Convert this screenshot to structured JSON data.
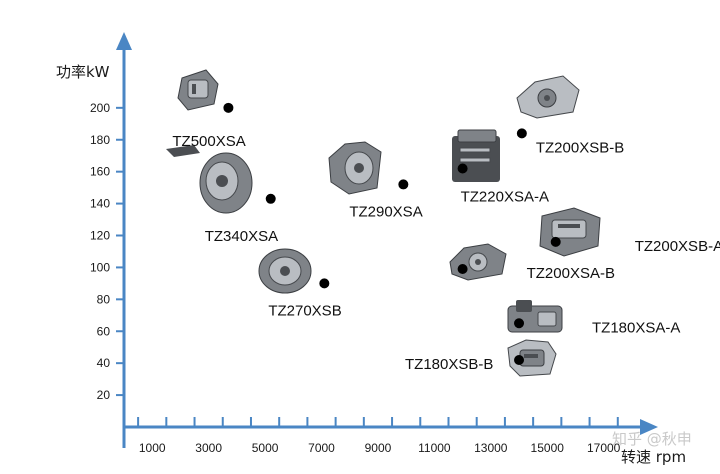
{
  "chart_data": {
    "type": "scatter",
    "title": "",
    "ylabel": "功率kW",
    "xlabel": "转速 rpm",
    "x_ticks": [
      1000,
      3000,
      5000,
      7000,
      9000,
      11000,
      13000,
      15000,
      17000
    ],
    "y_ticks": [
      20,
      40,
      60,
      80,
      100,
      120,
      140,
      160,
      180,
      200
    ],
    "xlim": [
      0,
      18500
    ],
    "ylim": [
      0,
      240
    ],
    "grid": false,
    "points": [
      {
        "label": "TZ500XSA",
        "x": 3700,
        "y": 200
      },
      {
        "label": "TZ340XSA",
        "x": 5200,
        "y": 143
      },
      {
        "label": "TZ290XSA",
        "x": 9900,
        "y": 152
      },
      {
        "label": "TZ270XSB",
        "x": 7100,
        "y": 90
      },
      {
        "label": "TZ220XSA-A",
        "x": 12000,
        "y": 162
      },
      {
        "label": "TZ200XSB-B",
        "x": 14100,
        "y": 184
      },
      {
        "label": "TZ200XSB-A",
        "x": 15300,
        "y": 116
      },
      {
        "label": "TZ200XSA-B",
        "x": 12000,
        "y": 99
      },
      {
        "label": "TZ180XSA-A",
        "x": 14000,
        "y": 65
      },
      {
        "label": "TZ180XSB-B",
        "x": 14000,
        "y": 42
      }
    ]
  },
  "watermark": "知乎 @秋申"
}
